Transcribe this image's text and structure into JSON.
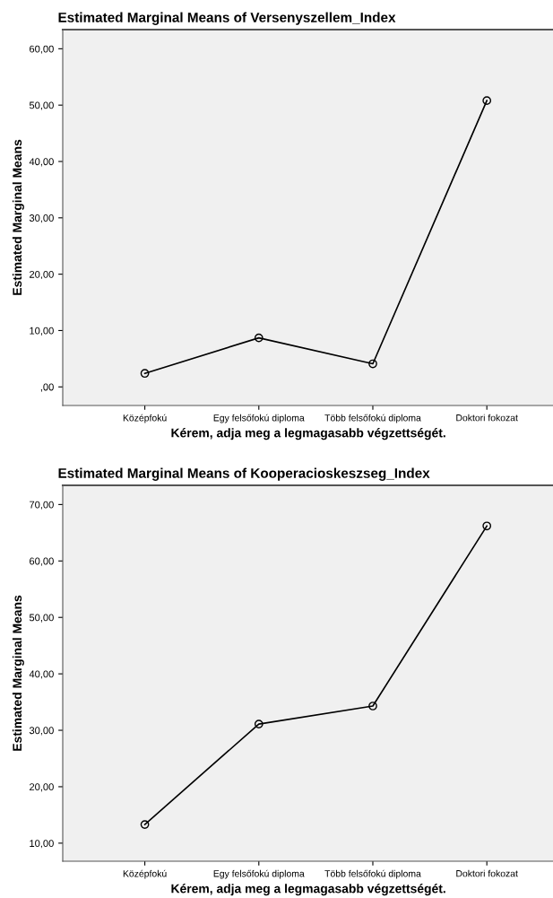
{
  "chart_data": [
    {
      "type": "line",
      "title": "Estimated Marginal Means of Versenyszellem_Index",
      "xlabel": "Kérem, adja meg a legmagasabb végzettségét.",
      "ylabel": "Estimated Marginal Means",
      "categories": [
        "Középfokú",
        "Egy felsőfokú diploma",
        "Több felsőfokú diploma",
        "Doktori fokozat"
      ],
      "series": [
        {
          "color": "#000000",
          "values": [
            2.4,
            8.7,
            4.1,
            50.8
          ]
        }
      ],
      "ylim": [
        -3.3,
        63.4
      ],
      "yticks": [
        {
          "value": 0,
          "label": ",00"
        },
        {
          "value": 10,
          "label": "10,00"
        },
        {
          "value": 20,
          "label": "20,00"
        },
        {
          "value": 30,
          "label": "30,00"
        },
        {
          "value": 40,
          "label": "40,00"
        },
        {
          "value": 50,
          "label": "50,00"
        },
        {
          "value": 60,
          "label": "60,00"
        }
      ],
      "marker": "circle",
      "line_style": "solid",
      "grid": false,
      "legend": false
    },
    {
      "type": "line",
      "title": "Estimated Marginal Means of Kooperacioskeszseg_Index",
      "xlabel": "Kérem, adja meg a legmagasabb végzettségét.",
      "ylabel": "Estimated Marginal Means",
      "categories": [
        "Középfokú",
        "Egy felsőfokú diploma",
        "Több felsőfokú diploma",
        "Doktori fokozat"
      ],
      "series": [
        {
          "color": "#000000",
          "values": [
            13.3,
            31.1,
            34.3,
            66.2
          ]
        }
      ],
      "ylim": [
        6.8,
        73.4
      ],
      "yticks": [
        {
          "value": 10,
          "label": "10,00"
        },
        {
          "value": 20,
          "label": "20,00"
        },
        {
          "value": 30,
          "label": "30,00"
        },
        {
          "value": 40,
          "label": "40,00"
        },
        {
          "value": 50,
          "label": "50,00"
        },
        {
          "value": 60,
          "label": "60,00"
        },
        {
          "value": 70,
          "label": "70,00"
        }
      ],
      "marker": "circle",
      "line_style": "solid",
      "grid": false,
      "legend": false
    }
  ]
}
